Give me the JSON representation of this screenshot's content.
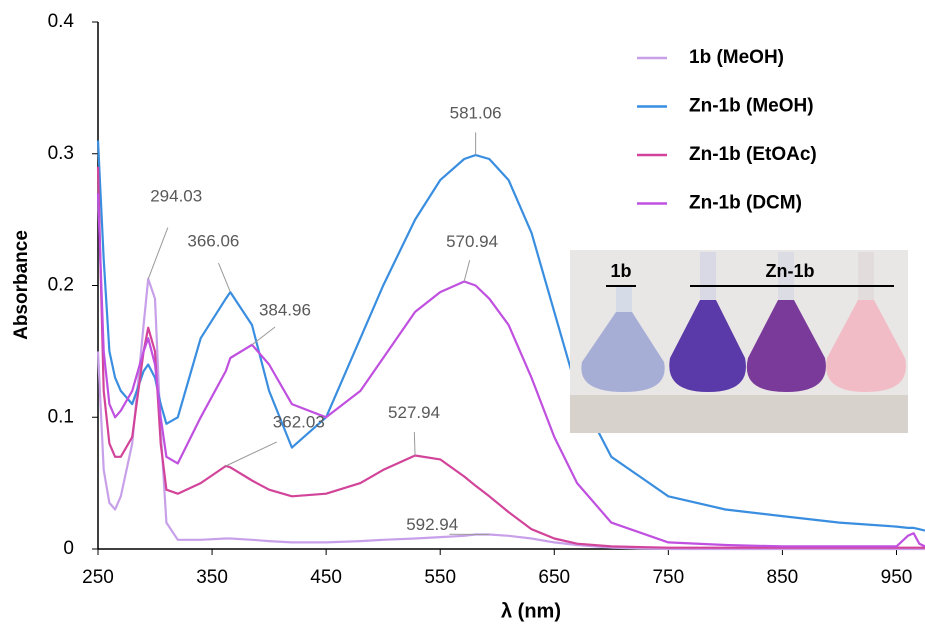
{
  "chart_data": {
    "type": "line",
    "xlabel": "λ (nm)",
    "ylabel": "Absorbance",
    "x": [
      250,
      255,
      260,
      265,
      270,
      280,
      290,
      294,
      300,
      305,
      310,
      320,
      340,
      362,
      366,
      385,
      400,
      420,
      450,
      480,
      500,
      528,
      550,
      571,
      581,
      593,
      610,
      630,
      650,
      670,
      700,
      750,
      800,
      850,
      900,
      950,
      960,
      965,
      970,
      975
    ],
    "series": [
      {
        "name": "1b (MeOH)",
        "color": "#c8a0ea",
        "values": [
          0.15,
          0.06,
          0.035,
          0.03,
          0.04,
          0.08,
          0.17,
          0.205,
          0.19,
          0.09,
          0.02,
          0.007,
          0.007,
          0.008,
          0.008,
          0.007,
          0.006,
          0.005,
          0.005,
          0.006,
          0.007,
          0.008,
          0.009,
          0.01,
          0.011,
          0.011,
          0.01,
          0.008,
          0.005,
          0.003,
          0.001,
          0,
          0,
          0,
          0,
          0,
          0,
          0,
          0,
          0
        ]
      },
      {
        "name": "Zn-1b (MeOH)",
        "color": "#3a8ee0",
        "values": [
          0.31,
          0.22,
          0.15,
          0.13,
          0.12,
          0.11,
          0.135,
          0.14,
          0.13,
          0.11,
          0.095,
          0.1,
          0.16,
          0.19,
          0.195,
          0.17,
          0.12,
          0.077,
          0.1,
          0.16,
          0.2,
          0.25,
          0.28,
          0.296,
          0.299,
          0.296,
          0.28,
          0.24,
          0.18,
          0.12,
          0.07,
          0.04,
          0.03,
          0.025,
          0.02,
          0.017,
          0.016,
          0.016,
          0.015,
          0.014
        ]
      },
      {
        "name": "Zn-1b (EtOAc)",
        "color": "#d2449a",
        "values": [
          0.29,
          0.12,
          0.08,
          0.07,
          0.07,
          0.085,
          0.15,
          0.168,
          0.15,
          0.08,
          0.045,
          0.042,
          0.05,
          0.063,
          0.062,
          0.052,
          0.045,
          0.04,
          0.042,
          0.05,
          0.06,
          0.071,
          0.068,
          0.055,
          0.048,
          0.04,
          0.028,
          0.015,
          0.008,
          0.004,
          0.002,
          0.001,
          0.001,
          0.001,
          0.001,
          0.001,
          0.001,
          0.001,
          0.001,
          0.001
        ]
      },
      {
        "name": "Zn-1b (DCM)",
        "color": "#c050e0",
        "values": [
          0.27,
          0.15,
          0.11,
          0.1,
          0.105,
          0.12,
          0.15,
          0.16,
          0.14,
          0.1,
          0.07,
          0.065,
          0.1,
          0.135,
          0.145,
          0.155,
          0.14,
          0.11,
          0.1,
          0.12,
          0.145,
          0.18,
          0.195,
          0.203,
          0.2,
          0.19,
          0.17,
          0.13,
          0.085,
          0.05,
          0.02,
          0.005,
          0.003,
          0.002,
          0.002,
          0.002,
          0.01,
          0.012,
          0.004,
          0.002
        ]
      }
    ],
    "xlim": [
      250,
      975
    ],
    "ylim": [
      0,
      0.4
    ],
    "xticks": [
      250,
      350,
      450,
      550,
      650,
      750,
      850,
      950
    ],
    "yticks": [
      0,
      0.1,
      0.2,
      0.3,
      0.4
    ],
    "annotations": [
      {
        "x": 294.03,
        "y": 0.205
      },
      {
        "x": 366.06,
        "y": 0.195
      },
      {
        "x": 384.96,
        "y": 0.155
      },
      {
        "x": 362.03,
        "y": 0.063
      },
      {
        "x": 527.94,
        "y": 0.071
      },
      {
        "x": 581.06,
        "y": 0.299
      },
      {
        "x": 570.94,
        "y": 0.203
      },
      {
        "x": 592.94,
        "y": 0.011
      }
    ],
    "legend": "upper right",
    "inset_labels": [
      "1b",
      "Zn-1b"
    ]
  }
}
